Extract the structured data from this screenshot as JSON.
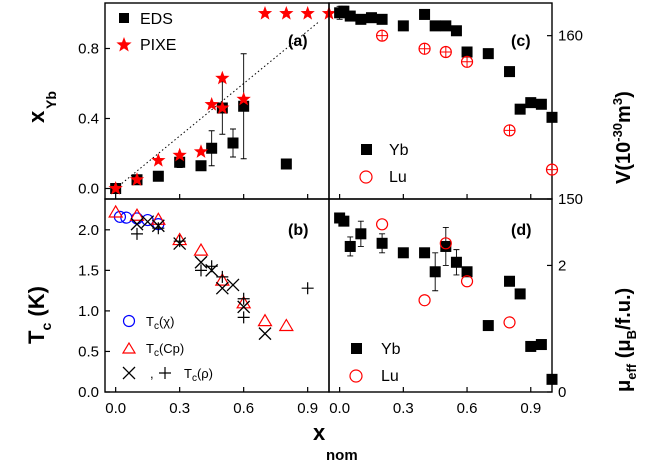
{
  "colors": {
    "black": "#000000",
    "red": "#ff0000",
    "blue": "#0000ff"
  },
  "labels": {
    "x_main": "x",
    "x_sub": "nom",
    "a_ylabel_main": "x",
    "a_ylabel_sub": "Yb",
    "b_ylabel_main": "T",
    "b_ylabel_sub": "c",
    "b_ylabel_unit": " (K)",
    "c_ylabel": "V(10",
    "c_ylabel_sup": "-30",
    "c_ylabel_mid": "m",
    "c_ylabel_sup2": "3",
    "c_ylabel_end": ")",
    "d_ylabel_main": "μ",
    "d_ylabel_sub": "eff",
    "d_ylabel_unit": " (μ",
    "d_ylabel_unit_sub": "B",
    "d_ylabel_end": "/f.u.)"
  },
  "chart_data": [
    {
      "panel": "(a)",
      "type": "scatter",
      "xlim": [
        -0.05,
        1.0
      ],
      "ylim": [
        -0.06,
        1.06
      ],
      "xticks": [],
      "yticks": [
        0.0,
        0.4,
        0.8
      ],
      "legend": [
        "EDS",
        "PIXE"
      ],
      "series": [
        {
          "name": "EDS",
          "marker": "square",
          "color": "#000000",
          "x": [
            0.0,
            0.1,
            0.2,
            0.3,
            0.4,
            0.45,
            0.5,
            0.55,
            0.6,
            0.8
          ],
          "y": [
            0.0,
            0.05,
            0.07,
            0.15,
            0.13,
            0.23,
            0.46,
            0.26,
            0.47,
            0.14
          ],
          "err": [
            0,
            0,
            0,
            0.03,
            0,
            0.1,
            0.15,
            0.08,
            0.3,
            0
          ]
        },
        {
          "name": "PIXE",
          "marker": "star",
          "color": "#ff0000",
          "x": [
            0.0,
            0.1,
            0.2,
            0.3,
            0.4,
            0.45,
            0.5,
            0.5,
            0.6,
            0.7,
            0.8,
            0.9,
            1.0
          ],
          "y": [
            0.0,
            0.05,
            0.16,
            0.19,
            0.21,
            0.48,
            0.63,
            0.46,
            0.51,
            1.0,
            1.0,
            1.0,
            1.0
          ]
        }
      ],
      "guide_line": {
        "x": [
          0.0,
          0.95
        ],
        "y": [
          0.0,
          0.95
        ]
      }
    },
    {
      "panel": "(b)",
      "type": "scatter",
      "xlim": [
        -0.05,
        1.0
      ],
      "ylim": [
        0.0,
        2.38
      ],
      "xticks": [
        0.0,
        0.3,
        0.6,
        0.9
      ],
      "yticks": [
        0.0,
        0.5,
        1.0,
        1.5,
        2.0
      ],
      "legend": [
        "Tc(χ)",
        "Tc(Cp)",
        ", Tc(ρ)"
      ],
      "series": [
        {
          "name": "Tc(χ)",
          "marker": "circle-open",
          "color": "#0000ff",
          "x": [
            0.02,
            0.05,
            0.1,
            0.15,
            0.2
          ],
          "y": [
            2.16,
            2.15,
            2.14,
            2.12,
            2.07
          ]
        },
        {
          "name": "Tc(Cp)",
          "marker": "triangle-open",
          "color": "#ff0000",
          "x": [
            0.0,
            0.1,
            0.2,
            0.3,
            0.4,
            0.5,
            0.6,
            0.7,
            0.8
          ],
          "y": [
            2.22,
            2.18,
            2.13,
            1.88,
            1.75,
            1.38,
            1.1,
            0.88,
            0.82
          ]
        },
        {
          "name": "Tc(ρ) x",
          "marker": "x",
          "color": "#000000",
          "x": [
            0.1,
            0.15,
            0.2,
            0.3,
            0.4,
            0.45,
            0.5,
            0.55,
            0.6,
            0.7
          ],
          "y": [
            2.07,
            2.1,
            2.05,
            1.83,
            1.6,
            1.5,
            1.28,
            1.32,
            1.05,
            0.72
          ]
        },
        {
          "name": "Tc(ρ) +",
          "marker": "plus",
          "color": "#000000",
          "x": [
            0.1,
            0.2,
            0.3,
            0.4,
            0.45,
            0.5,
            0.6,
            0.6,
            0.9
          ],
          "y": [
            1.95,
            2.02,
            1.86,
            1.5,
            1.55,
            1.42,
            1.15,
            0.92,
            1.28
          ]
        }
      ]
    },
    {
      "panel": "(c)",
      "type": "scatter",
      "xlim": [
        -0.05,
        1.0
      ],
      "ylim": [
        150.0,
        162.0
      ],
      "xticks": [],
      "yticks": [
        150,
        160
      ],
      "legend": [
        "Yb",
        "Lu"
      ],
      "series": [
        {
          "name": "Yb",
          "marker": "square",
          "color": "#000000",
          "x": [
            0.0,
            0.02,
            0.05,
            0.1,
            0.15,
            0.2,
            0.3,
            0.4,
            0.45,
            0.5,
            0.55,
            0.6,
            0.7,
            0.8,
            0.85,
            0.9,
            0.95,
            1.0
          ],
          "y": [
            161.4,
            161.5,
            161.2,
            161.0,
            161.1,
            161.0,
            160.6,
            161.3,
            160.6,
            160.6,
            160.3,
            159.0,
            158.9,
            157.8,
            155.5,
            155.9,
            155.8,
            155.0
          ],
          "err": [
            0.4,
            0.3,
            0.3,
            0,
            0,
            0,
            0,
            0,
            0,
            0,
            0,
            0,
            0,
            0,
            0,
            0,
            0,
            0
          ]
        },
        {
          "name": "Lu",
          "marker": "circle-open-cross",
          "color": "#ff0000",
          "x": [
            0.2,
            0.4,
            0.5,
            0.6,
            0.8,
            1.0
          ],
          "y": [
            160.0,
            159.2,
            159.0,
            158.4,
            154.2,
            151.8
          ]
        }
      ]
    },
    {
      "panel": "(d)",
      "type": "scatter",
      "xlim": [
        -0.05,
        1.0
      ],
      "ylim": [
        0.0,
        3.05
      ],
      "xticks": [
        0.0,
        0.3,
        0.6,
        0.9
      ],
      "yticks": [
        0,
        2
      ],
      "legend": [
        "Yb",
        "Lu"
      ],
      "series": [
        {
          "name": "Yb",
          "marker": "square",
          "color": "#000000",
          "x": [
            0.0,
            0.02,
            0.05,
            0.1,
            0.2,
            0.3,
            0.4,
            0.45,
            0.5,
            0.55,
            0.6,
            0.7,
            0.8,
            0.85,
            0.9,
            0.95,
            1.0
          ],
          "y": [
            2.75,
            2.7,
            2.3,
            2.5,
            2.35,
            2.2,
            2.2,
            1.9,
            2.3,
            2.05,
            1.9,
            1.05,
            1.75,
            1.55,
            0.72,
            0.75,
            0.2
          ],
          "err": [
            0,
            0,
            0.15,
            0.2,
            0.15,
            0,
            0,
            0.3,
            0.3,
            0.2,
            0,
            0,
            0,
            0,
            0,
            0,
            0
          ]
        },
        {
          "name": "Lu",
          "marker": "circle-open",
          "color": "#ff0000",
          "x": [
            0.2,
            0.4,
            0.5,
            0.6,
            0.8
          ],
          "y": [
            2.65,
            1.45,
            2.35,
            1.75,
            1.1
          ]
        }
      ]
    }
  ]
}
